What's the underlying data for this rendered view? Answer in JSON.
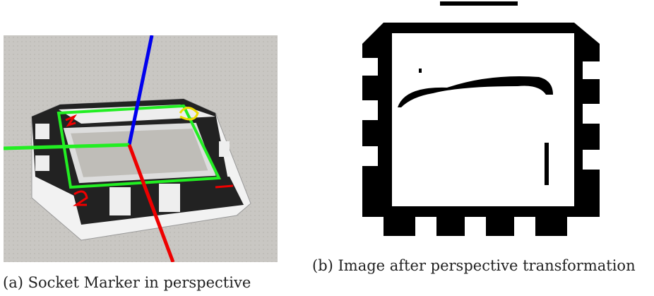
{
  "figures": [
    {
      "caption": "(a) Socket Marker in perspective"
    },
    {
      "caption": "(b) Image after perspective transformation"
    }
  ]
}
